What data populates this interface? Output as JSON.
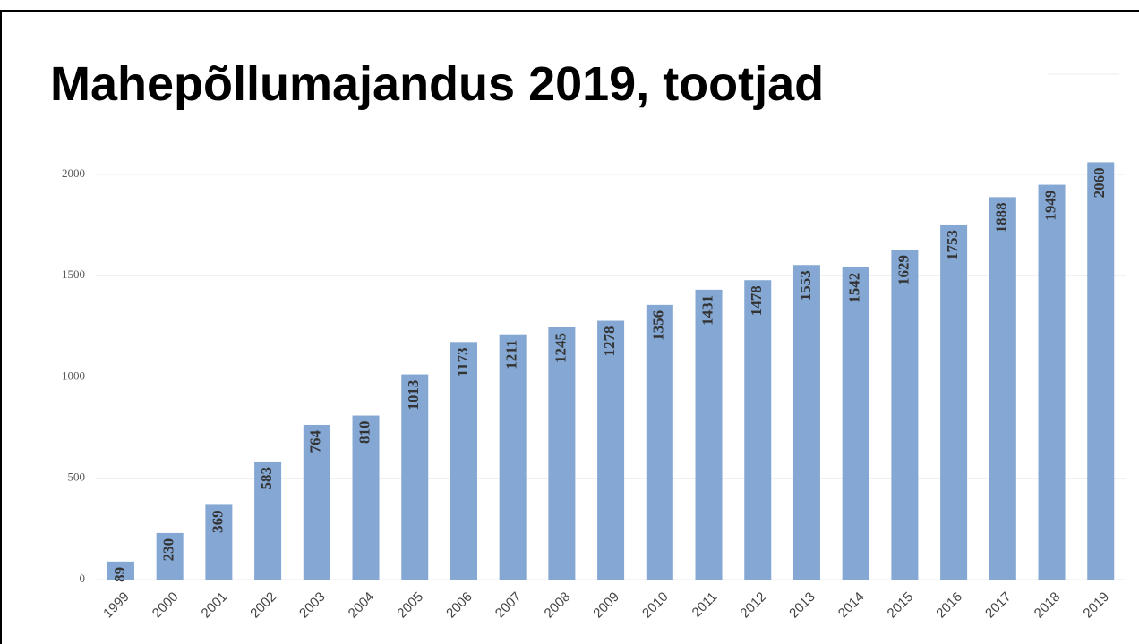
{
  "chart_data": {
    "type": "bar",
    "title": "Mahepõllumajandus 2019, tootjad",
    "categories": [
      "1999",
      "2000",
      "2001",
      "2002",
      "2003",
      "2004",
      "2005",
      "2006",
      "2007",
      "2008",
      "2009",
      "2010",
      "2011",
      "2012",
      "2013",
      "2014",
      "2015",
      "2016",
      "2017",
      "2018",
      "2019"
    ],
    "values": [
      89,
      230,
      369,
      583,
      764,
      810,
      1013,
      1173,
      1211,
      1245,
      1278,
      1356,
      1431,
      1478,
      1553,
      1542,
      1629,
      1753,
      1888,
      1949,
      2060
    ],
    "color": "#84a7d3",
    "ylim": [
      0,
      2000
    ],
    "yticks": [
      0,
      500,
      1000,
      1500,
      2000
    ],
    "grid": true
  }
}
